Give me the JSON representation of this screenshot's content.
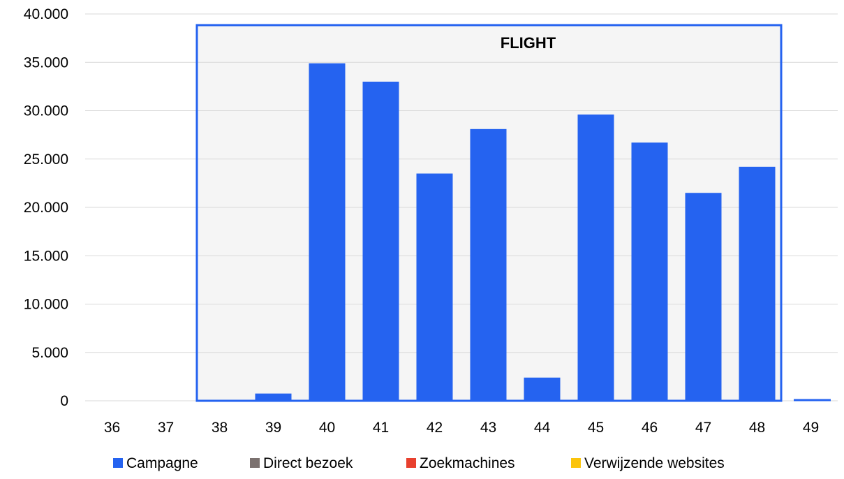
{
  "chart_data": {
    "type": "bar",
    "categories": [
      "36",
      "37",
      "38",
      "39",
      "40",
      "41",
      "42",
      "43",
      "44",
      "45",
      "46",
      "47",
      "48",
      "49"
    ],
    "series": [
      {
        "name": "Campagne",
        "color": "#2563F0",
        "values": [
          0,
          0,
          100,
          750,
          34900,
          33000,
          23500,
          28100,
          2400,
          29600,
          26700,
          21500,
          24200,
          0
        ]
      },
      {
        "name": "Direct bezoek",
        "color": "#7B716F",
        "values": [
          0,
          0,
          0,
          0,
          0,
          0,
          0,
          0,
          0,
          0,
          0,
          0,
          0,
          0
        ]
      },
      {
        "name": "Zoekmachines",
        "color": "#E8402E",
        "values": [
          0,
          0,
          0,
          0,
          0,
          0,
          0,
          0,
          0,
          0,
          0,
          0,
          0,
          0
        ]
      },
      {
        "name": "Verwijzende websites",
        "color": "#FBC40B",
        "values": [
          0,
          0,
          0,
          0,
          0,
          0,
          0,
          0,
          0,
          0,
          0,
          0,
          0,
          0
        ]
      }
    ],
    "ylim": [
      0,
      40000
    ],
    "yticks": [
      "0",
      "5.000",
      "10.000",
      "15.000",
      "20.000",
      "25.000",
      "30.000",
      "35.000",
      "40.000"
    ],
    "grid": true,
    "legend_position": "bottom",
    "annotation": {
      "label": "FLIGHT",
      "from_category": "38",
      "to_category": "48",
      "border_color": "#2563F0",
      "fill_color": "#F5F5F5"
    }
  }
}
